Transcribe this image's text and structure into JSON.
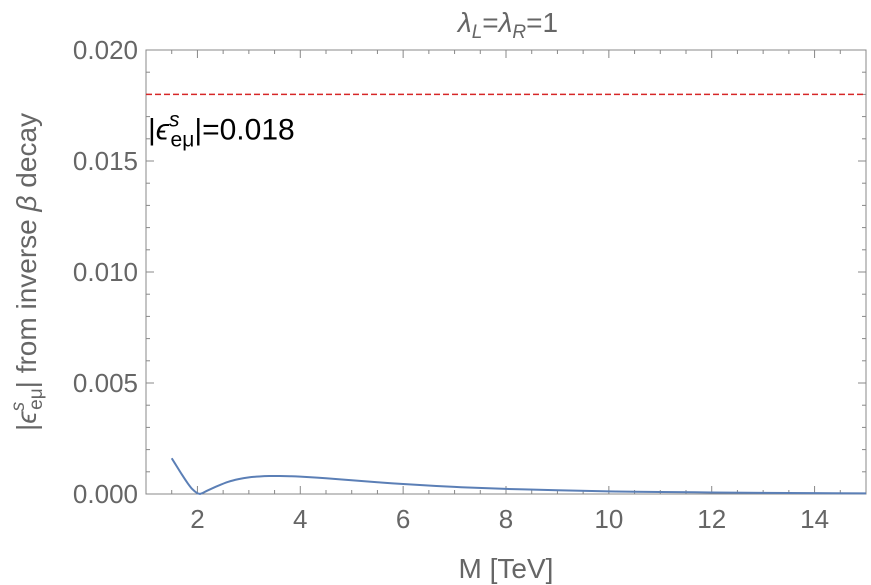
{
  "chart_data": {
    "type": "line",
    "title": {
      "lambda": "λ",
      "subL": "L",
      "eq1": "=",
      "subR": "R",
      "eq2": "=1"
    },
    "xlabel": "M [TeV]",
    "ylabel": {
      "open": "|",
      "eps": "ϵ",
      "sub": "eμ",
      "sup": "s",
      "rest": "| from inverse ",
      "beta": "β",
      "tail": " decay"
    },
    "xlim": [
      1,
      15
    ],
    "ylim": [
      0,
      0.02
    ],
    "x_ticks": [
      2,
      4,
      6,
      8,
      10,
      12,
      14
    ],
    "x_tick_labels": [
      "2",
      "4",
      "6",
      "8",
      "10",
      "12",
      "14"
    ],
    "y_ticks": [
      0,
      0.005,
      0.01,
      0.015,
      0.02
    ],
    "y_tick_labels": [
      "0.000",
      "0.005",
      "0.010",
      "0.015",
      "0.020"
    ],
    "grid": false,
    "series": [
      {
        "color": "#5b7fb6",
        "style": "solid",
        "x": [
          1.5,
          1.6,
          1.7,
          1.8,
          1.9,
          2.0,
          2.05,
          2.1,
          2.2,
          2.4,
          2.6,
          2.8,
          3.0,
          3.2,
          3.4,
          3.6,
          3.8,
          4.0,
          4.5,
          5.0,
          5.5,
          6.0,
          7.0,
          8.0,
          9.0,
          10.0,
          11.0,
          12.0,
          13.0,
          14.0,
          15.0
        ],
        "y": [
          0.00161,
          0.00124,
          0.00087,
          0.00052,
          0.00022,
          3e-05,
          0.0,
          4e-05,
          0.00016,
          0.00037,
          0.00055,
          0.00067,
          0.00075,
          0.00079,
          0.00081,
          0.00081,
          0.0008,
          0.00078,
          0.00071,
          0.00062,
          0.00053,
          0.00045,
          0.00032,
          0.00023,
          0.00017,
          0.00012,
          9e-05,
          7e-05,
          5e-05,
          4e-05,
          3e-05
        ]
      }
    ],
    "reference_line": {
      "y": 0.018,
      "color": "#d62728",
      "style": "dashed"
    },
    "annotation": {
      "open": "|",
      "eps": "ϵ",
      "sub": "eμ",
      "sup": "s",
      "rest": "|=0.018",
      "x": 1,
      "y": 0.0162
    }
  }
}
